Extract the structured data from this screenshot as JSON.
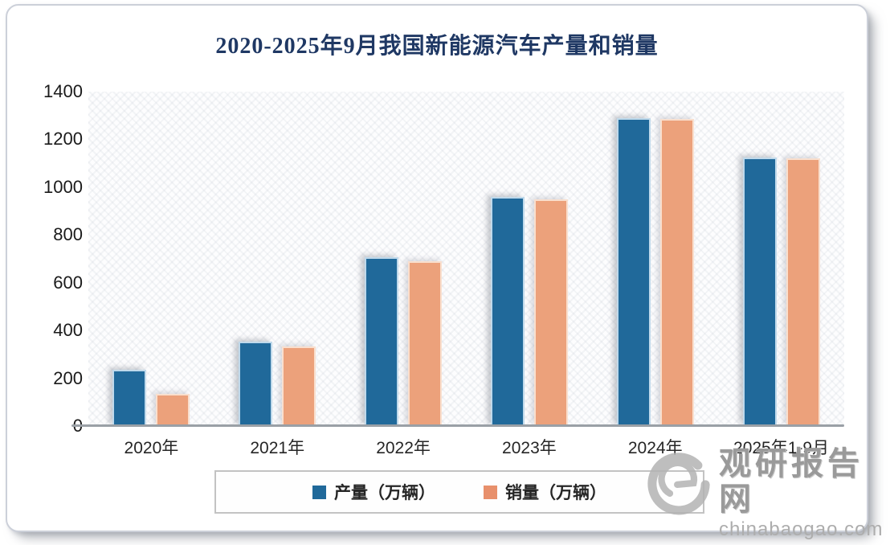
{
  "title": "2020-2025年9月我国新能源汽车产量和销量",
  "chart_data": {
    "type": "bar",
    "categories": [
      "2020年",
      "2021年",
      "2022年",
      "2023年",
      "2024年",
      "2025年1-9月"
    ],
    "series": [
      {
        "name": "产量（万辆）",
        "color": "#20699A",
        "values": [
          235,
          355,
          706,
          959,
          1289,
          1124
        ]
      },
      {
        "name": "销量（万辆）",
        "color": "#E8906C",
        "values": [
          136,
          333,
          689,
          949,
          1285,
          1122
        ]
      }
    ],
    "title": "2020-2025年9月我国新能源汽车产量和销量",
    "xlabel": "",
    "ylabel": "",
    "ylim": [
      0,
      1400
    ],
    "yticks": [
      0,
      200,
      400,
      600,
      800,
      1000,
      1200,
      1400
    ],
    "grid": false,
    "legend_position": "bottom"
  },
  "legend": {
    "items": [
      {
        "label": "产量（万辆）",
        "color": "#20699A"
      },
      {
        "label": "销量（万辆）",
        "color": "#E8906C"
      }
    ]
  },
  "watermark": {
    "site_name": "观研报告网",
    "site_url": "chinabaogao.com"
  },
  "colors": {
    "title_text": "#1F3864",
    "production_bar": "#20699A",
    "sales_bar": "#ECA17B",
    "axis_line": "#9aa0a6",
    "tick_text": "#1a1a1a",
    "watermark_gray": "#9a9a9a"
  }
}
